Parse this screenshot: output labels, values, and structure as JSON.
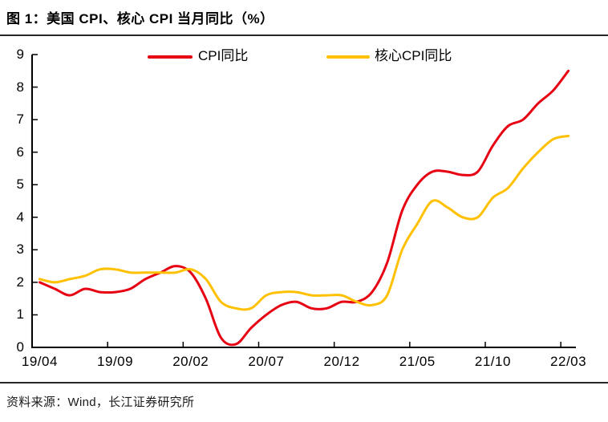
{
  "figure": {
    "title": "图 1：美国 CPI、核心 CPI 当月同比（%）",
    "source": "资料来源：Wind，长江证券研究所"
  },
  "chart_data": {
    "type": "line",
    "title": "图 1：美国 CPI、核心 CPI 当月同比（%）",
    "x": [
      "19/04",
      "19/05",
      "19/06",
      "19/07",
      "19/08",
      "19/09",
      "19/10",
      "19/11",
      "19/12",
      "20/01",
      "20/02",
      "20/03",
      "20/04",
      "20/05",
      "20/06",
      "20/07",
      "20/08",
      "20/09",
      "20/10",
      "20/11",
      "20/12",
      "21/01",
      "21/02",
      "21/03",
      "21/04",
      "21/05",
      "21/06",
      "21/07",
      "21/08",
      "21/09",
      "21/10",
      "21/11",
      "21/12",
      "22/01",
      "22/02",
      "22/03"
    ],
    "x_tick_labels": [
      "19/04",
      "19/09",
      "20/02",
      "20/07",
      "20/12",
      "21/05",
      "21/10",
      "22/03"
    ],
    "x_tick_every": 5,
    "series": [
      {
        "name": "CPI同比",
        "color": "#e60012",
        "values": [
          2.0,
          1.8,
          1.6,
          1.8,
          1.7,
          1.7,
          1.8,
          2.1,
          2.3,
          2.5,
          2.3,
          1.5,
          0.3,
          0.1,
          0.6,
          1.0,
          1.3,
          1.4,
          1.2,
          1.2,
          1.4,
          1.4,
          1.7,
          2.6,
          4.2,
          5.0,
          5.4,
          5.4,
          5.3,
          5.4,
          6.2,
          6.8,
          7.0,
          7.5,
          7.9,
          8.5
        ]
      },
      {
        "name": "核心CPI同比",
        "color": "#ffc000",
        "values": [
          2.1,
          2.0,
          2.1,
          2.2,
          2.4,
          2.4,
          2.3,
          2.3,
          2.3,
          2.3,
          2.4,
          2.1,
          1.4,
          1.2,
          1.2,
          1.6,
          1.7,
          1.7,
          1.6,
          1.6,
          1.6,
          1.4,
          1.3,
          1.6,
          3.0,
          3.8,
          4.5,
          4.3,
          4.0,
          4.0,
          4.6,
          4.9,
          5.5,
          6.0,
          6.4,
          6.5
        ]
      }
    ],
    "ylim": [
      0,
      9
    ],
    "yticks": [
      0,
      1,
      2,
      3,
      4,
      5,
      6,
      7,
      8,
      9
    ],
    "grid": false,
    "legend_position": "top",
    "axis_color": "#000000"
  }
}
